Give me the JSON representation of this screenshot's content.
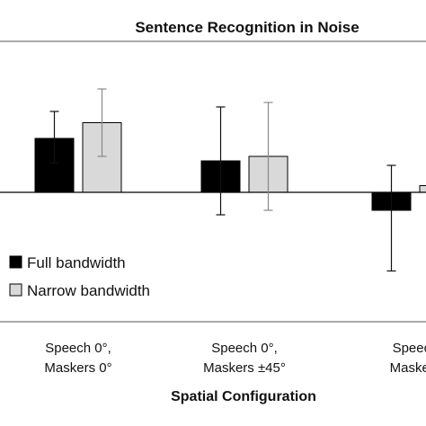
{
  "chart_data": {
    "type": "bar",
    "title": "Sentence Recognition in Noise",
    "xlabel": "Spatial Configuration",
    "ylabel": "",
    "ylim": [
      -8,
      8
    ],
    "categories": [
      [
        "Speech 0°,",
        "Maskers 0°"
      ],
      [
        "Speech 0°,",
        "Maskers ±45°"
      ],
      [
        "Speech",
        "Maskers"
      ]
    ],
    "series": [
      {
        "name": "Full bandwidth",
        "color": "#000000",
        "values": [
          2.4,
          1.4,
          -0.8
        ],
        "error_low": [
          1.1,
          2.4,
          2.7
        ],
        "error_high": [
          1.2,
          2.4,
          2.0
        ]
      },
      {
        "name": "Narrow bandwidth",
        "color": "#d9d9d9",
        "values": [
          3.1,
          1.6,
          0.3
        ],
        "error_low": [
          1.5,
          2.4,
          0.3
        ],
        "error_high": [
          1.5,
          2.4,
          0.3
        ]
      }
    ],
    "grid": false,
    "legend": "left-center"
  }
}
